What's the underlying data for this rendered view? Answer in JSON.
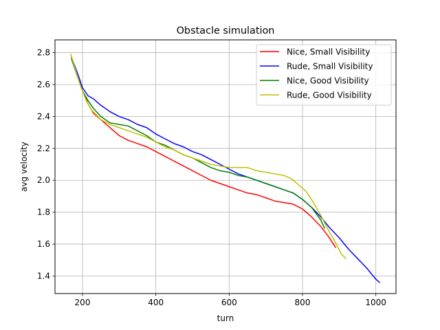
{
  "chart_data": {
    "type": "line",
    "title": "Obstacle simulation",
    "xlabel": "turn",
    "ylabel": "avg velocity",
    "xlim": [
      125,
      1055
    ],
    "ylim": [
      1.29,
      2.88
    ],
    "xticks": [
      200,
      400,
      600,
      800,
      1000
    ],
    "yticks": [
      1.4,
      1.6,
      1.8,
      2.0,
      2.2,
      2.4,
      2.6,
      2.8
    ],
    "xtick_labels": [
      "200",
      "400",
      "600",
      "800",
      "1000"
    ],
    "ytick_labels": [
      "1.4",
      "1.6",
      "1.8",
      "2.0",
      "2.2",
      "2.4",
      "2.6",
      "2.8"
    ],
    "grid": true,
    "legend_position": "top-right",
    "series": [
      {
        "name": "Nice, Small Visibility",
        "color": "#ff0000",
        "x": [
          170,
          185,
          200,
          215,
          230,
          250,
          275,
          300,
          325,
          350,
          375,
          400,
          425,
          450,
          475,
          500,
          525,
          550,
          575,
          600,
          625,
          650,
          675,
          700,
          725,
          750,
          775,
          800,
          825,
          850,
          870,
          890
        ],
        "y": [
          2.77,
          2.66,
          2.56,
          2.48,
          2.42,
          2.38,
          2.33,
          2.28,
          2.25,
          2.23,
          2.21,
          2.18,
          2.15,
          2.12,
          2.09,
          2.06,
          2.03,
          2.0,
          1.98,
          1.96,
          1.94,
          1.92,
          1.91,
          1.89,
          1.87,
          1.86,
          1.85,
          1.82,
          1.77,
          1.71,
          1.65,
          1.58
        ]
      },
      {
        "name": "Rude, Small Visibility",
        "color": "#0000ff",
        "x": [
          170,
          185,
          200,
          215,
          230,
          250,
          275,
          300,
          325,
          350,
          375,
          400,
          425,
          450,
          475,
          500,
          525,
          550,
          575,
          600,
          625,
          650,
          675,
          700,
          725,
          750,
          775,
          800,
          825,
          850,
          875,
          900,
          925,
          950,
          975,
          1000,
          1010
        ],
        "y": [
          2.77,
          2.68,
          2.58,
          2.53,
          2.51,
          2.47,
          2.43,
          2.4,
          2.38,
          2.35,
          2.33,
          2.29,
          2.26,
          2.23,
          2.21,
          2.18,
          2.16,
          2.13,
          2.1,
          2.07,
          2.04,
          2.02,
          2.0,
          1.98,
          1.96,
          1.94,
          1.92,
          1.88,
          1.83,
          1.77,
          1.7,
          1.64,
          1.57,
          1.51,
          1.45,
          1.38,
          1.36
        ]
      },
      {
        "name": "Nice, Good Visibility",
        "color": "#008000",
        "x": [
          170,
          185,
          200,
          215,
          230,
          250,
          275,
          300,
          325,
          350,
          375,
          400,
          425,
          450,
          475,
          500,
          525,
          550,
          575,
          600,
          625,
          650,
          675,
          700,
          725,
          750,
          775,
          800,
          825,
          850,
          860
        ],
        "y": [
          2.76,
          2.66,
          2.56,
          2.5,
          2.45,
          2.4,
          2.36,
          2.35,
          2.34,
          2.31,
          2.28,
          2.24,
          2.22,
          2.19,
          2.16,
          2.14,
          2.11,
          2.08,
          2.06,
          2.05,
          2.03,
          2.02,
          2.0,
          1.98,
          1.96,
          1.94,
          1.92,
          1.88,
          1.83,
          1.75,
          1.7
        ]
      },
      {
        "name": "Rude, Good Visibility",
        "color": "#bfbf00",
        "x": [
          168,
          180,
          195,
          210,
          225,
          250,
          275,
          300,
          325,
          350,
          375,
          400,
          425,
          450,
          475,
          500,
          525,
          550,
          575,
          600,
          625,
          650,
          675,
          700,
          725,
          750,
          770,
          790,
          810,
          830,
          850,
          870,
          890,
          905,
          918
        ],
        "y": [
          2.79,
          2.7,
          2.59,
          2.5,
          2.44,
          2.38,
          2.35,
          2.33,
          2.31,
          2.29,
          2.27,
          2.24,
          2.21,
          2.19,
          2.16,
          2.14,
          2.12,
          2.1,
          2.09,
          2.08,
          2.08,
          2.08,
          2.06,
          2.05,
          2.04,
          2.03,
          2.01,
          1.97,
          1.93,
          1.86,
          1.78,
          1.69,
          1.61,
          1.54,
          1.51
        ]
      }
    ]
  }
}
